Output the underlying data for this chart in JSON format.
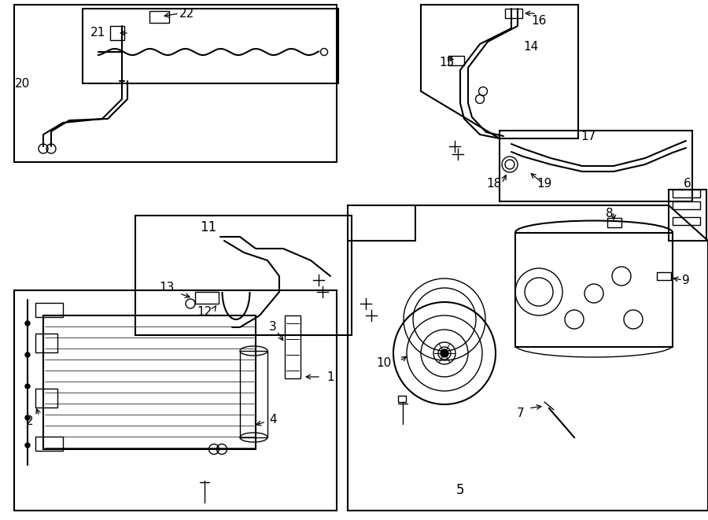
{
  "bg_color": "#ffffff",
  "line_color": "#000000",
  "fig_width": 9.0,
  "fig_height": 6.61,
  "label_fontsize": 11,
  "arrow_color": "#000000"
}
